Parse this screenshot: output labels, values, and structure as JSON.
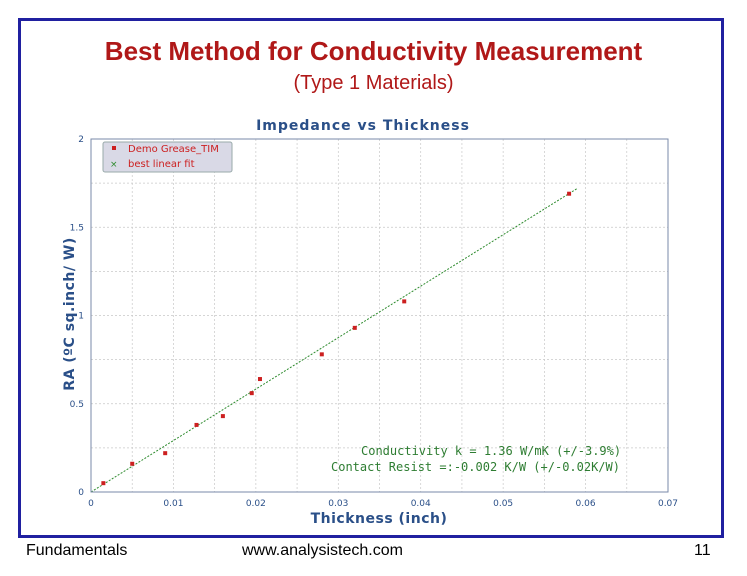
{
  "slide": {
    "title": "Best Method for Conductivity Measurement",
    "subtitle": "(Type 1 Materials)",
    "footer_left": "Fundamentals",
    "footer_center": "www.analysistech.com",
    "page_number": "11"
  },
  "colors": {
    "frame": "#2020a0",
    "title": "#b01818",
    "axis_text": "#2a4f88",
    "points": "#cc2020",
    "fit_line": "#2e8b2e",
    "annotation": "#2e7d32"
  },
  "chart_data": {
    "type": "scatter",
    "title": "Impedance vs Thickness",
    "xlabel": "Thickness (inch)",
    "ylabel": "RA (ºC sq.inch/ W)",
    "xlim": [
      0,
      0.07
    ],
    "ylim": [
      0,
      2
    ],
    "x_ticks": [
      "0",
      "0.01",
      "0.02",
      "0.03",
      "0.04",
      "0.05",
      "0.06",
      "0.07"
    ],
    "y_ticks": [
      "0",
      "0.5",
      "1",
      "1.5",
      "2"
    ],
    "grid": true,
    "legend_position": "top-left",
    "series": [
      {
        "name": "Demo Grease_TIM",
        "marker": "square",
        "x": [
          0.0015,
          0.005,
          0.009,
          0.0128,
          0.016,
          0.0195,
          0.0205,
          0.028,
          0.032,
          0.038,
          0.058
        ],
        "y": [
          0.05,
          0.16,
          0.22,
          0.38,
          0.43,
          0.56,
          0.64,
          0.78,
          0.93,
          1.08,
          1.69
        ]
      },
      {
        "name": "best linear fit",
        "type": "line",
        "x": [
          0,
          0.059
        ],
        "y": [
          0.0,
          1.72
        ]
      }
    ],
    "annotations": [
      "Conductivity k = 1.36 W/mK (+/-3.9%)",
      "Contact Resist =:-0.002 K/W (+/-0.02K/W)"
    ]
  }
}
